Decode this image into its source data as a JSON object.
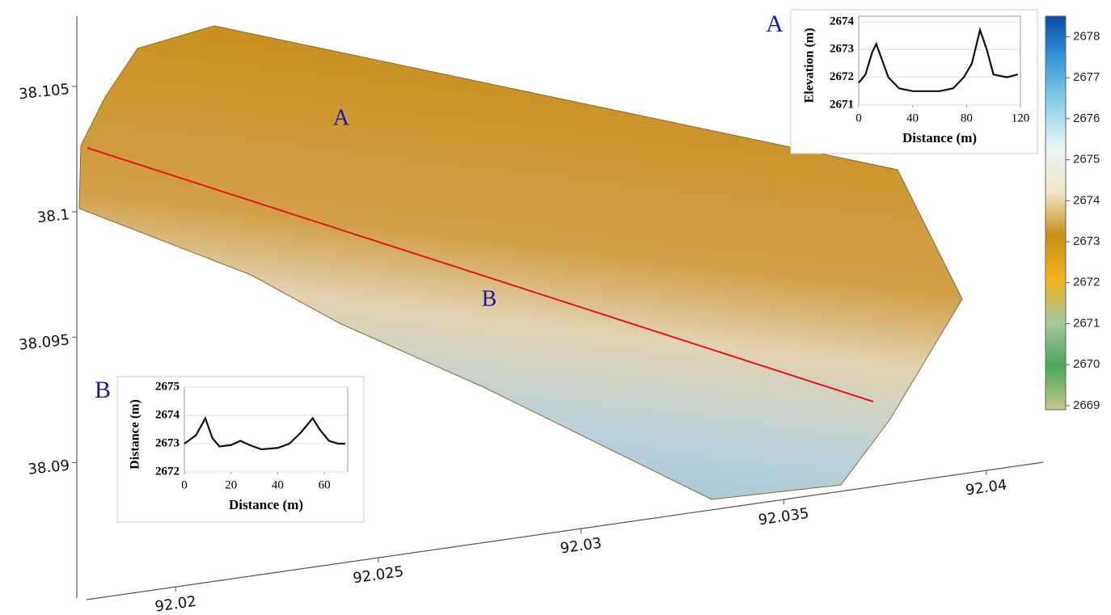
{
  "chart_data": [
    {
      "type": "surface",
      "xlim": [
        92.0178,
        92.0414
      ],
      "xticks": [
        92.02,
        92.025,
        92.03,
        92.035,
        92.04
      ],
      "ylim": [
        38.0846,
        38.1078
      ],
      "yticks": [
        38.09,
        38.095,
        38.1,
        38.105
      ],
      "profile_labels": [
        "A",
        "B"
      ],
      "profile_color": "#e8141c",
      "colorbar": {
        "clim": [
          2668.9,
          2678.5
        ],
        "ticks": [
          2669,
          2670,
          2671,
          2672,
          2673,
          2674,
          2675,
          2676,
          2677,
          2678
        ],
        "colormap": [
          "#c8c88a",
          "#4aa85a",
          "#a8c8a0",
          "#f2b21c",
          "#c8901a",
          "#f2e6c8",
          "#e8f4f8",
          "#8fd0e8",
          "#3a9ad8",
          "#0a4aa8"
        ]
      }
    },
    {
      "type": "line",
      "label": "A",
      "xlabel": "Distance (m)",
      "ylabel": "Elevation (m)",
      "xlim": [
        0,
        120
      ],
      "xticks": [
        0,
        40,
        80,
        120
      ],
      "ylim": [
        2671,
        2674.2
      ],
      "yticks": [
        2671,
        2672,
        2673,
        2674
      ],
      "grid": true,
      "color": "#111111",
      "x": [
        0,
        5,
        10,
        13,
        16,
        22,
        30,
        40,
        50,
        60,
        70,
        78,
        84,
        90,
        95,
        100,
        110,
        118
      ],
      "values": [
        2671.8,
        2672.1,
        2672.9,
        2673.2,
        2672.8,
        2672.0,
        2671.6,
        2671.5,
        2671.5,
        2671.5,
        2671.6,
        2672.0,
        2672.5,
        2673.7,
        2673.0,
        2672.1,
        2672.0,
        2672.1
      ]
    },
    {
      "type": "line",
      "label": "B",
      "xlabel": "Distance (m)",
      "ylabel": "Distance (m)",
      "xlim": [
        0,
        70
      ],
      "xticks": [
        0,
        20,
        40,
        60
      ],
      "ylim": [
        2672,
        2675
      ],
      "yticks": [
        2672,
        2673,
        2674,
        2675
      ],
      "grid": true,
      "color": "#111111",
      "x": [
        0,
        5,
        9,
        12,
        15,
        20,
        24,
        28,
        33,
        40,
        45,
        50,
        55,
        58,
        62,
        66,
        69
      ],
      "values": [
        2673.0,
        2673.3,
        2673.9,
        2673.2,
        2672.9,
        2672.95,
        2673.1,
        2672.95,
        2672.8,
        2672.85,
        2673.0,
        2673.4,
        2673.9,
        2673.5,
        2673.1,
        2673.0,
        2673.0
      ]
    }
  ]
}
